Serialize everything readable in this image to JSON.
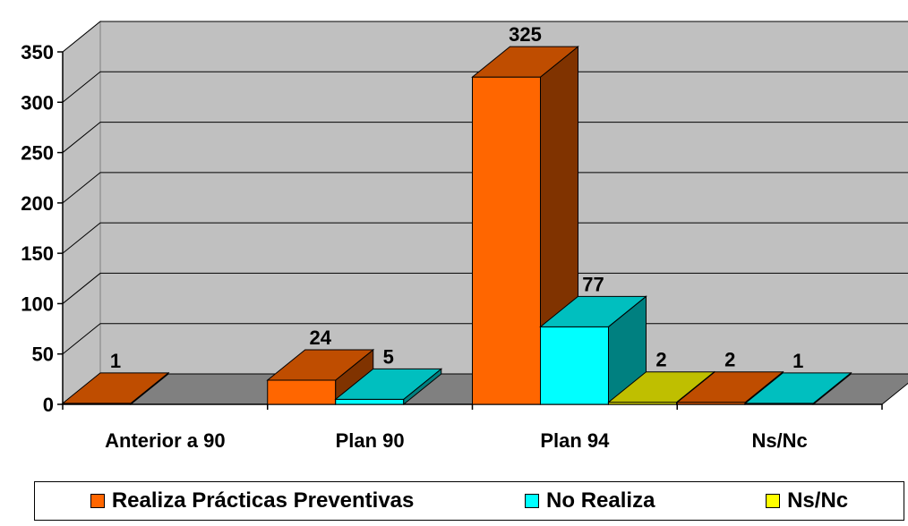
{
  "chart_data": {
    "type": "bar",
    "title": "",
    "xlabel": "",
    "ylabel": "",
    "categories": [
      "Anterior a 90",
      "Plan 90",
      "Plan 94",
      "Ns/Nc"
    ],
    "y_ticks": [
      "0",
      "50",
      "100",
      "150",
      "200",
      "250",
      "300",
      "350"
    ],
    "ylim": [
      0,
      350
    ],
    "grid": true,
    "legend_position": "bottom",
    "series": [
      {
        "name": "Realiza Prácticas Preventivas",
        "color": "#FF6600",
        "values": [
          1,
          24,
          325,
          2
        ],
        "labels": [
          "1",
          "24",
          "325",
          "2"
        ]
      },
      {
        "name": "No Realiza",
        "color": "#00FFFF",
        "values": [
          null,
          5,
          77,
          1
        ],
        "labels": [
          "",
          "5",
          "77",
          "1"
        ]
      },
      {
        "name": "Ns/Nc",
        "color": "#FFFF00",
        "values": [
          null,
          null,
          2,
          null
        ],
        "labels": [
          "",
          "",
          "2",
          ""
        ]
      }
    ]
  }
}
